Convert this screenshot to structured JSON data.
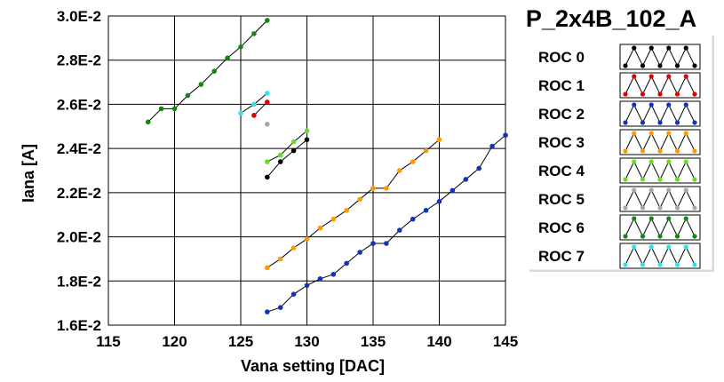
{
  "chart_data": {
    "type": "line",
    "title": "P_2x4B_102_A",
    "xlabel": "Vana setting [DAC]",
    "ylabel": "Iana [A]",
    "xlim": [
      115,
      145
    ],
    "ylim": [
      0.016,
      0.03
    ],
    "x_ticks": [
      115,
      120,
      125,
      130,
      135,
      140,
      145
    ],
    "y_ticks": [
      0.016,
      0.018,
      0.02,
      0.022,
      0.024,
      0.026,
      0.028,
      0.03
    ],
    "x_tick_labels": [
      "115",
      "120",
      "125",
      "130",
      "135",
      "140",
      "145"
    ],
    "y_tick_labels": [
      "1.6E-2",
      "1.8E-2",
      "2.0E-2",
      "2.2E-2",
      "2.4E-2",
      "2.6E-2",
      "2.8E-2",
      "3.0E-2"
    ],
    "grid": true,
    "legend_position": "right",
    "series": [
      {
        "name": "ROC 0",
        "color": "#000000",
        "x": [
          127,
          128,
          129,
          130
        ],
        "y": [
          0.0227,
          0.0234,
          0.0239,
          0.0244
        ]
      },
      {
        "name": "ROC 1",
        "color": "#e00000",
        "x": [
          126,
          127
        ],
        "y": [
          0.0255,
          0.0261
        ]
      },
      {
        "name": "ROC 2",
        "color": "#1034b8",
        "x": [
          127,
          128,
          129,
          130,
          131,
          132,
          133,
          134,
          135,
          136,
          137,
          138,
          139,
          140,
          141,
          142,
          143,
          144,
          145
        ],
        "y": [
          0.0166,
          0.0168,
          0.0174,
          0.0178,
          0.0181,
          0.0183,
          0.0188,
          0.0193,
          0.0197,
          0.0197,
          0.0203,
          0.0208,
          0.0212,
          0.0216,
          0.0221,
          0.0226,
          0.0231,
          0.0241,
          0.0246
        ]
      },
      {
        "name": "ROC 3",
        "color": "#ff9900",
        "x": [
          127,
          128,
          129,
          130,
          131,
          132,
          133,
          134,
          135,
          136,
          137,
          138,
          139,
          140
        ],
        "y": [
          0.0186,
          0.019,
          0.0195,
          0.0199,
          0.0204,
          0.0208,
          0.0212,
          0.0217,
          0.0222,
          0.0222,
          0.023,
          0.0234,
          0.0239,
          0.0244
        ]
      },
      {
        "name": "ROC 4",
        "color": "#66dd22",
        "x": [
          127,
          128,
          129,
          130
        ],
        "y": [
          0.0234,
          0.0237,
          0.0243,
          0.0248
        ]
      },
      {
        "name": "ROC 5",
        "color": "#a8a8a8",
        "x": [
          127
        ],
        "y": [
          0.0251
        ]
      },
      {
        "name": "ROC 6",
        "color": "#118811",
        "x": [
          118,
          119,
          120,
          121,
          122,
          123,
          124,
          125,
          126,
          127
        ],
        "y": [
          0.0252,
          0.0258,
          0.0258,
          0.0264,
          0.0269,
          0.0275,
          0.0281,
          0.0286,
          0.0292,
          0.0298
        ]
      },
      {
        "name": "ROC 7",
        "color": "#33e0f0",
        "x": [
          125,
          126,
          127
        ],
        "y": [
          0.0256,
          0.026,
          0.0265
        ]
      }
    ]
  }
}
